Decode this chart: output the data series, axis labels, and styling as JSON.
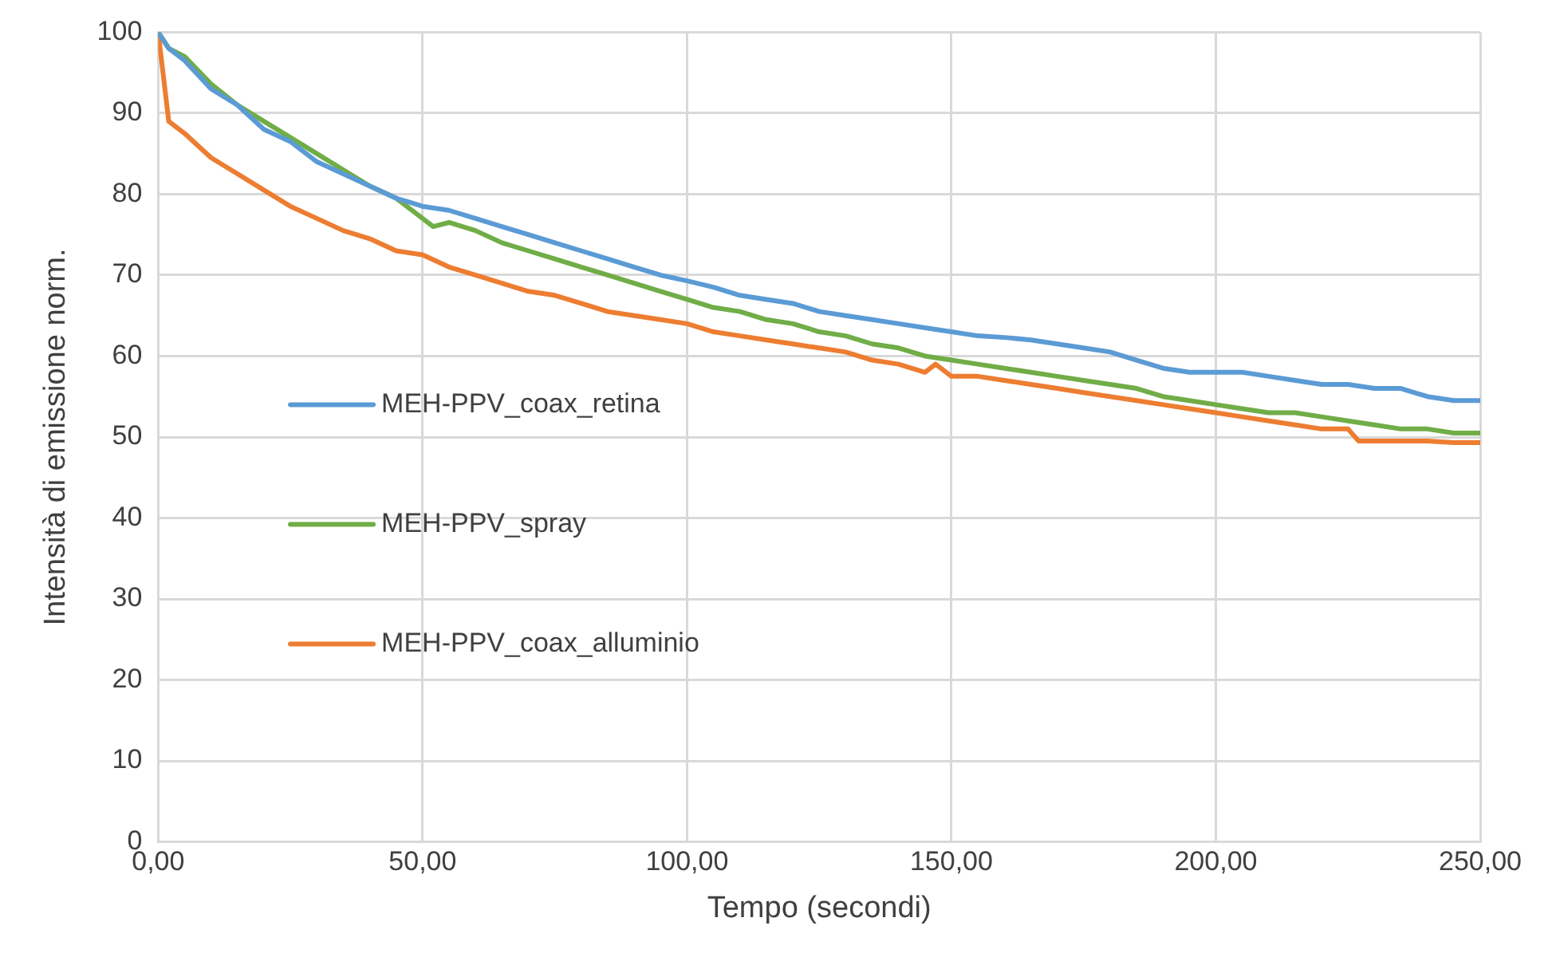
{
  "chart_data": {
    "type": "line",
    "xlabel": "Tempo (secondi)",
    "ylabel": "Intensità di emissione norm.",
    "xlim": [
      0,
      250
    ],
    "xticks": [
      {
        "value": 0,
        "label": "0,00"
      },
      {
        "value": 50,
        "label": "50,00"
      },
      {
        "value": 100,
        "label": "100,00"
      },
      {
        "value": 150,
        "label": "150,00"
      },
      {
        "value": 200,
        "label": "200,00"
      },
      {
        "value": 250,
        "label": "250,00"
      }
    ],
    "ylim": [
      0,
      100
    ],
    "yticks": [
      0,
      10,
      20,
      30,
      40,
      50,
      60,
      70,
      80,
      90,
      100
    ],
    "grid": true,
    "legend": "left",
    "marker": "none",
    "line_style": "solid",
    "series": [
      {
        "name": "MEH-PPV_coax_retina",
        "color": "#5b9bd5",
        "x": [
          0,
          2,
          5,
          10,
          15,
          20,
          25,
          30,
          35,
          40,
          45,
          50,
          55,
          60,
          65,
          70,
          75,
          80,
          85,
          90,
          95,
          100,
          105,
          110,
          115,
          120,
          125,
          130,
          135,
          140,
          145,
          150,
          155,
          160,
          165,
          170,
          175,
          180,
          185,
          190,
          195,
          200,
          205,
          210,
          215,
          220,
          225,
          230,
          235,
          240,
          245,
          250
        ],
        "values": [
          100,
          98,
          96.5,
          93,
          91,
          88,
          86.5,
          84,
          82.5,
          81,
          79.5,
          78.5,
          78,
          77,
          76,
          75,
          74,
          73,
          72,
          71,
          70,
          69.3,
          68.5,
          67.5,
          67,
          66.5,
          65.5,
          65,
          64.5,
          64,
          63.5,
          63,
          62.5,
          62.3,
          62,
          61.5,
          61,
          60.5,
          59.5,
          58.5,
          58,
          58,
          58,
          57.5,
          57,
          56.5,
          56.5,
          56,
          56,
          55,
          54.5,
          54.5
        ]
      },
      {
        "name": "MEH-PPV_spray",
        "color": "#70ad47",
        "x": [
          0,
          2,
          5,
          10,
          15,
          20,
          25,
          30,
          35,
          40,
          45,
          50,
          52,
          55,
          60,
          65,
          70,
          75,
          80,
          85,
          90,
          95,
          100,
          105,
          110,
          115,
          120,
          125,
          130,
          135,
          140,
          145,
          150,
          155,
          160,
          165,
          170,
          175,
          180,
          185,
          190,
          195,
          200,
          205,
          210,
          215,
          220,
          225,
          230,
          235,
          240,
          245,
          250
        ],
        "values": [
          100,
          98,
          97,
          93.6,
          91,
          89,
          87,
          85,
          83,
          81,
          79.5,
          77,
          76,
          76.5,
          75.5,
          74,
          73,
          72,
          71,
          70,
          69,
          68,
          67,
          66,
          65.5,
          64.5,
          64,
          63,
          62.5,
          61.5,
          61,
          60,
          59.5,
          59,
          58.5,
          58,
          57.5,
          57,
          56.5,
          56,
          55,
          54.5,
          54,
          53.5,
          53,
          53,
          52.5,
          52,
          51.5,
          51,
          51,
          50.5,
          50.5
        ]
      },
      {
        "name": "MEH-PPV_coax_alluminio",
        "color": "#ed7d31",
        "x": [
          0,
          2,
          5,
          10,
          15,
          20,
          25,
          30,
          35,
          40,
          45,
          50,
          55,
          60,
          65,
          70,
          75,
          80,
          85,
          90,
          95,
          100,
          105,
          110,
          115,
          120,
          125,
          130,
          135,
          140,
          145,
          147,
          150,
          155,
          160,
          165,
          170,
          175,
          180,
          185,
          190,
          195,
          200,
          205,
          210,
          215,
          220,
          225,
          227,
          230,
          235,
          240,
          245,
          250
        ],
        "values": [
          100,
          89,
          87.5,
          84.5,
          82.5,
          80.5,
          78.5,
          77,
          75.5,
          74.5,
          73,
          72.5,
          71,
          70,
          69,
          68,
          67.5,
          66.5,
          65.5,
          65,
          64.5,
          64,
          63,
          62.5,
          62,
          61.5,
          61,
          60.5,
          59.5,
          59,
          58,
          59,
          57.5,
          57.5,
          57,
          56.5,
          56,
          55.5,
          55,
          54.5,
          54,
          53.5,
          53,
          52.5,
          52,
          51.5,
          51,
          51,
          49.5,
          49.5,
          49.5,
          49.5,
          49.3,
          49.3
        ]
      }
    ]
  }
}
